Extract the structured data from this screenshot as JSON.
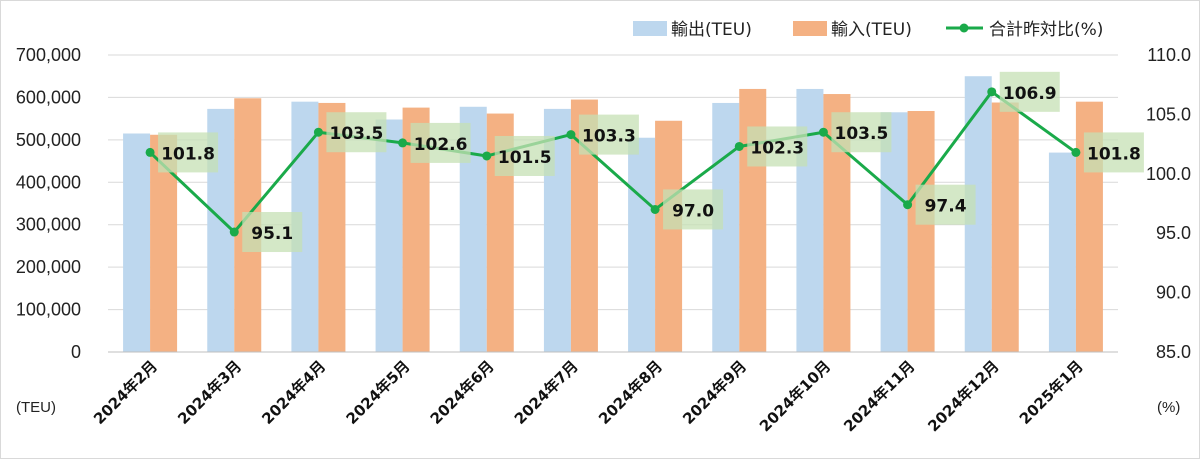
{
  "chart_data": {
    "type": "bar",
    "categories": [
      "2024年2月",
      "2024年3月",
      "2024年4月",
      "2024年5月",
      "2024年6月",
      "2024年7月",
      "2024年8月",
      "2024年9月",
      "2024年10月",
      "2024年11月",
      "2024年12月",
      "2025年1月"
    ],
    "series": [
      {
        "name": "輸出(TEU)",
        "type": "bar",
        "axis": "left",
        "color": "#bdd7ee",
        "values": [
          515000,
          573000,
          590000,
          548000,
          578000,
          573000,
          505000,
          587000,
          620000,
          565000,
          650000,
          470000
        ]
      },
      {
        "name": "輸入(TEU)",
        "type": "bar",
        "axis": "left",
        "color": "#f4b183",
        "values": [
          512000,
          598000,
          587000,
          576000,
          562000,
          595000,
          545000,
          620000,
          608000,
          568000,
          588000,
          590000
        ]
      },
      {
        "name": "合計昨対比(%)",
        "type": "line",
        "axis": "right",
        "color": "#1aaa4a",
        "values": [
          101.8,
          95.1,
          103.5,
          102.6,
          101.5,
          103.3,
          97.0,
          102.3,
          103.5,
          97.4,
          106.9,
          101.8
        ],
        "labels": [
          "101.8",
          "95.1",
          "103.5",
          "102.6",
          "101.5",
          "103.3",
          "97.0",
          "102.3",
          "103.5",
          "97.4",
          "106.9",
          "101.8"
        ]
      }
    ],
    "y_left": {
      "ylim": [
        0,
        700000
      ],
      "ticks": [
        "0",
        "100,000",
        "200,000",
        "300,000",
        "400,000",
        "500,000",
        "600,000",
        "700,000"
      ],
      "unit": "(TEU)"
    },
    "y_right": {
      "ylim": [
        85.0,
        110.0
      ],
      "ticks": [
        "85.0",
        "90.0",
        "95.0",
        "100.0",
        "105.0",
        "110.0"
      ],
      "unit": "(%)"
    },
    "grid": true,
    "legend_position": "top-right",
    "title": "",
    "xlabel": ""
  }
}
